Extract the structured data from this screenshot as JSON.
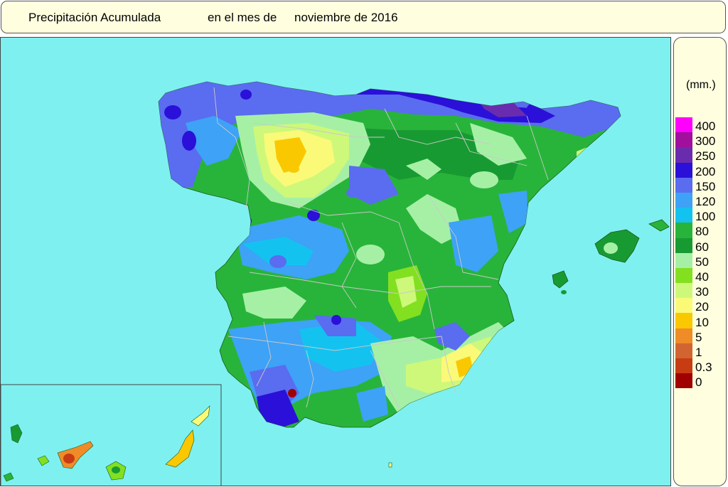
{
  "title": {
    "part1": "Precipitación Acumulada",
    "part2": "en el mes de",
    "part3": "noviembre de 2016"
  },
  "legend": {
    "unit": "(mm.)",
    "classes": [
      {
        "label": "400",
        "color": "#ff00ff"
      },
      {
        "label": "300",
        "color": "#a0109c"
      },
      {
        "label": "250",
        "color": "#6a2cae"
      },
      {
        "label": "200",
        "color": "#2a10d8"
      },
      {
        "label": "150",
        "color": "#5a6cf0"
      },
      {
        "label": "120",
        "color": "#3ea2f6"
      },
      {
        "label": "100",
        "color": "#14c2f0"
      },
      {
        "label": "80",
        "color": "#28b43a"
      },
      {
        "label": "60",
        "color": "#189a32"
      },
      {
        "label": "50",
        "color": "#a6f0a6"
      },
      {
        "label": "40",
        "color": "#82e020"
      },
      {
        "label": "30",
        "color": "#cef87a"
      },
      {
        "label": "20",
        "color": "#fafa78"
      },
      {
        "label": "10",
        "color": "#fac800"
      },
      {
        "label": "5",
        "color": "#f08c28"
      },
      {
        "label": "1",
        "color": "#d26432"
      },
      {
        "label": "0.3",
        "color": "#c83c14"
      },
      {
        "label": "0",
        "color": "#a00000"
      }
    ]
  }
}
